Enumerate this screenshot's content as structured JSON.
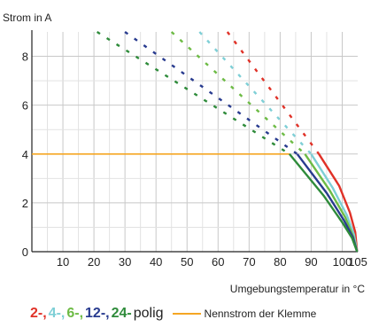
{
  "chart_data": {
    "type": "line",
    "title": "",
    "ylabel": "Strom in A",
    "xlabel": "Umgebungstemperatur in °C",
    "xlim": [
      0,
      105
    ],
    "ylim": [
      0,
      9
    ],
    "x_ticks": [
      10,
      20,
      30,
      40,
      50,
      60,
      70,
      80,
      90,
      100,
      105
    ],
    "y_ticks": [
      0,
      2,
      4,
      6,
      8
    ],
    "grid": true,
    "series": [
      {
        "name": "2-",
        "color": "#e03127",
        "dotted": [
          [
            63,
            9
          ],
          [
            92.5,
            4
          ]
        ],
        "solid": [
          [
            92.5,
            4
          ],
          [
            99,
            2.7
          ],
          [
            102.5,
            1.6
          ],
          [
            104.2,
            0.8
          ],
          [
            104.8,
            0
          ]
        ]
      },
      {
        "name": "4-",
        "color": "#7ecfd6",
        "dotted": [
          [
            54,
            9
          ],
          [
            90,
            4
          ]
        ],
        "solid": [
          [
            90,
            4
          ],
          [
            97,
            2.6
          ],
          [
            101.5,
            1.5
          ],
          [
            103.8,
            0.7
          ],
          [
            104.8,
            0
          ]
        ]
      },
      {
        "name": "6-",
        "color": "#6dbb45",
        "dotted": [
          [
            45,
            9
          ],
          [
            88,
            4
          ]
        ],
        "solid": [
          [
            88,
            4
          ],
          [
            96,
            2.5
          ],
          [
            101,
            1.4
          ],
          [
            103.6,
            0.6
          ],
          [
            104.8,
            0
          ]
        ]
      },
      {
        "name": "12-",
        "color": "#283b8f",
        "dotted": [
          [
            30,
            9
          ],
          [
            85.5,
            4
          ]
        ],
        "solid": [
          [
            85.5,
            4
          ],
          [
            95,
            2.4
          ],
          [
            100.5,
            1.3
          ],
          [
            103.4,
            0.6
          ],
          [
            104.8,
            0
          ]
        ]
      },
      {
        "name": "24-",
        "color": "#2e8b3a",
        "dotted": [
          [
            21,
            9
          ],
          [
            83,
            4
          ]
        ],
        "solid": [
          [
            83,
            4
          ],
          [
            94,
            2.3
          ],
          [
            100,
            1.2
          ],
          [
            103.2,
            0.55
          ],
          [
            104.8,
            0
          ]
        ]
      }
    ],
    "nennstrom": {
      "label": "Nennstrom der Klemme",
      "value": 4,
      "x_end": 83,
      "color": "#f5a623"
    },
    "legend": {
      "placement": "bottom",
      "suffix": "polig"
    }
  }
}
